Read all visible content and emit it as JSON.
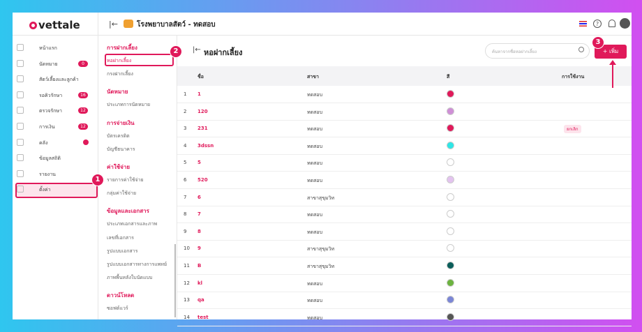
{
  "header": {
    "logo": "vettale",
    "clinic": "โรงพยาบาลสัตว์ - ทดสอบ"
  },
  "sidebar": {
    "items": [
      {
        "label": "หน้าแรก"
      },
      {
        "label": "นัดหมาย",
        "badge": "0"
      },
      {
        "label": "สัตว์เลี้ยงและลูกค้า"
      },
      {
        "label": "รอคิวรักษา",
        "badge": "16"
      },
      {
        "label": "ตรวจรักษา",
        "badge": "12"
      },
      {
        "label": "การเงิน",
        "badge": "12"
      },
      {
        "label": "คลัง",
        "dot": true
      },
      {
        "label": "ข้อมูลสถิติ"
      },
      {
        "label": "รายงาน"
      },
      {
        "label": "ตั้งค่า",
        "active": true
      }
    ]
  },
  "settings_menu": {
    "sections": [
      {
        "title": "การฝากเลี้ยง",
        "items": [
          {
            "label": "หอฝากเลี้ยง",
            "active": true
          },
          {
            "label": "กรงฝากเลี้ยง"
          }
        ]
      },
      {
        "title": "นัดหมาย",
        "items": [
          {
            "label": "ประเภทการนัดหมาย"
          }
        ]
      },
      {
        "title": "การจ่ายเงิน",
        "items": [
          {
            "label": "บัตรเครดิต"
          },
          {
            "label": "บัญชีธนาคาร"
          }
        ]
      },
      {
        "title": "ค่าใช้จ่าย",
        "items": [
          {
            "label": "รายการค่าใช้จ่าย"
          },
          {
            "label": "กลุ่มค่าใช้จ่าย"
          }
        ]
      },
      {
        "title": "ข้อมูลและเอกสาร",
        "items": [
          {
            "label": "ประเภทเอกสารและภาพ"
          },
          {
            "label": "เลขที่เอกสาร"
          },
          {
            "label": "รูปแบบเอกสาร"
          },
          {
            "label": "รูปแบบเอกสารทางการแพทย์"
          },
          {
            "label": "ภาพพื้นหลังใบนัดแบบ"
          }
        ]
      },
      {
        "title": "ดาวน์โหลด",
        "items": [
          {
            "label": "ซอฟต์แวร์"
          }
        ]
      }
    ]
  },
  "page": {
    "title": "หอฝากเลี้ยง",
    "search_placeholder": "ค้นหาจากชื่อหอฝากเลี้ยง",
    "add_button": "+ เพิ่ม"
  },
  "table": {
    "columns": [
      "ชื่อ",
      "สาขา",
      "สี",
      "การใช้งาน"
    ],
    "rows": [
      {
        "no": "1",
        "name": "1",
        "branch": "ทดสอบ",
        "color": "#e0195a"
      },
      {
        "no": "2",
        "name": "120",
        "branch": "ทดสอบ",
        "color": "#cf8fd6"
      },
      {
        "no": "3",
        "name": "231",
        "branch": "ทดสอบ",
        "color": "#e0195a",
        "status": "ยกเลิก"
      },
      {
        "no": "4",
        "name": "3dssn",
        "branch": "ทดสอบ",
        "color": "#2ee6e6"
      },
      {
        "no": "5",
        "name": "5",
        "branch": "ทดสอบ",
        "color": "#ffffff"
      },
      {
        "no": "6",
        "name": "520",
        "branch": "ทดสอบ",
        "color": "#e3c3ef"
      },
      {
        "no": "7",
        "name": "6",
        "branch": "สาขาสุขุมวิท",
        "color": "#ffffff"
      },
      {
        "no": "8",
        "name": "7",
        "branch": "ทดสอบ",
        "color": "#ffffff"
      },
      {
        "no": "9",
        "name": "8",
        "branch": "ทดสอบ",
        "color": "#ffffff"
      },
      {
        "no": "10",
        "name": "9",
        "branch": "สาขาสุขุมวิท",
        "color": "#ffffff"
      },
      {
        "no": "11",
        "name": "B",
        "branch": "สาขาสุขุมวิท",
        "color": "#0b5e5a"
      },
      {
        "no": "12",
        "name": "kl",
        "branch": "ทดสอบ",
        "color": "#6cb33f"
      },
      {
        "no": "13",
        "name": "qa",
        "branch": "ทดสอบ",
        "color": "#7b86d6"
      },
      {
        "no": "14",
        "name": "test",
        "branch": "ทดสอบ",
        "color": "#555555"
      }
    ]
  },
  "callouts": [
    "1",
    "2",
    "3"
  ]
}
